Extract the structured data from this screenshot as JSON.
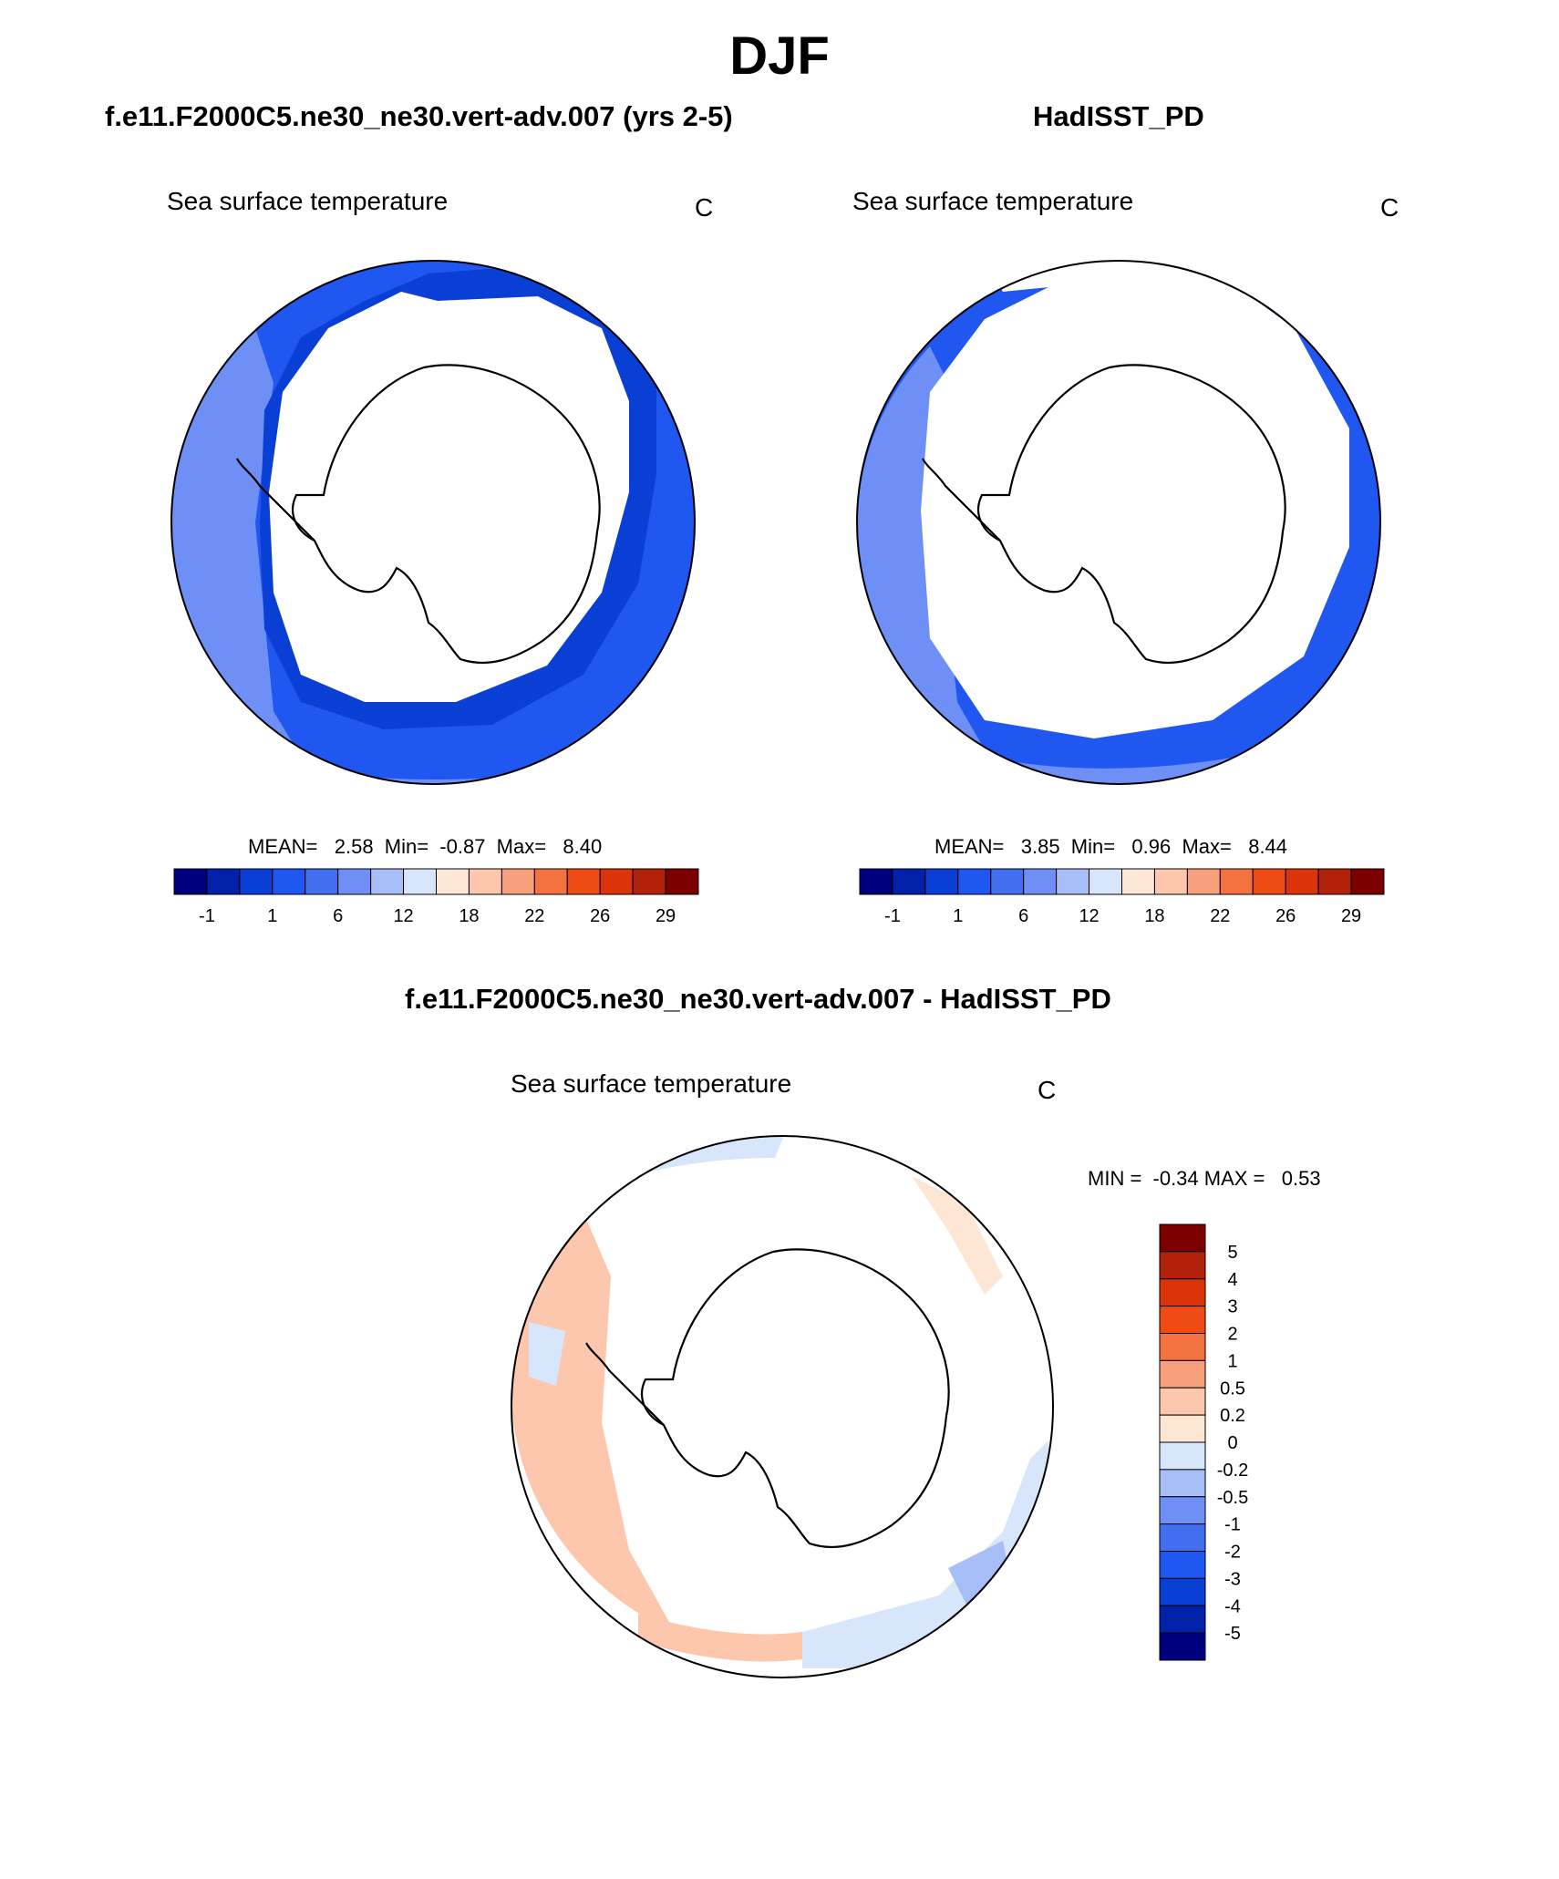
{
  "page": {
    "title": "DJF",
    "case_title": "f.e11.F2000C5.ne30_ne30.vert-adv.007 (yrs 2-5)",
    "obs_title": "HadISST_PD",
    "diff_title": "f.e11.F2000C5.ne30_ne30.vert-adv.007 - HadISST_PD"
  },
  "colors": {
    "abs_levels": [
      "#00007f",
      "#0021a8",
      "#0a3fd6",
      "#1f57f0",
      "#416ff0",
      "#6e8ff5",
      "#a6bdf6",
      "#d8e6fb",
      "#fde6d4",
      "#fcc7ad",
      "#f8a07c",
      "#f4723f",
      "#ef4b15",
      "#db330a",
      "#b2220a",
      "#7d0000"
    ],
    "diff_levels": [
      "#00007f",
      "#0021a8",
      "#0a3fd6",
      "#1f57f0",
      "#416ff0",
      "#6e8ff5",
      "#a6bdf6",
      "#d8e6fb",
      "#fde6d4",
      "#fcc7ad",
      "#f8a07c",
      "#f4723f",
      "#ef4b15",
      "#db330a",
      "#b2220a",
      "#7d0000"
    ]
  },
  "chart_data": [
    {
      "type": "heatmap",
      "title": "f.e11.F2000C5.ne30_ne30.vert-adv.007 (yrs 2-5)",
      "variable": "Sea surface temperature",
      "units": "C",
      "projection": "south polar stereographic",
      "stats": {
        "mean_label": "MEAN=",
        "mean": "2.58",
        "min_label": "Min=",
        "min": "-0.87",
        "max_label": "Max=",
        "max": "8.40"
      },
      "colorbar_ticks": [
        "-1",
        "1",
        "6",
        "12",
        "18",
        "22",
        "26",
        "29"
      ],
      "dominant_range": [
        -1,
        6
      ]
    },
    {
      "type": "heatmap",
      "title": "HadISST_PD",
      "variable": "Sea surface temperature",
      "units": "C",
      "projection": "south polar stereographic",
      "stats": {
        "mean_label": "MEAN=",
        "mean": "3.85",
        "min_label": "Min=",
        "min": "0.96",
        "max_label": "Max=",
        "max": "8.44"
      },
      "colorbar_ticks": [
        "-1",
        "1",
        "6",
        "12",
        "18",
        "22",
        "26",
        "29"
      ],
      "dominant_range": [
        1,
        6
      ]
    },
    {
      "type": "heatmap",
      "title": "f.e11.F2000C5.ne30_ne30.vert-adv.007 - HadISST_PD",
      "variable": "Sea surface temperature",
      "units": "C",
      "projection": "south polar stereographic",
      "stats": {
        "min_label": "MIN =",
        "min": "-0.34",
        "max_label": "MAX =",
        "max": "0.53"
      },
      "colorbar_ticks": [
        "5",
        "4",
        "3",
        "2",
        "1",
        "0.5",
        "0.2",
        "0",
        "-0.2",
        "-0.5",
        "-1",
        "-2",
        "-3",
        "-4",
        "-5"
      ],
      "dominant_range": [
        -0.5,
        0.5
      ]
    }
  ],
  "labels": {
    "panel1": {
      "name": "Sea surface temperature",
      "units": "C",
      "stats": "MEAN=   2.58  Min=  -0.87  Max=   8.40"
    },
    "panel2": {
      "name": "Sea surface temperature",
      "units": "C",
      "stats": "MEAN=   3.85  Min=   0.96  Max=   8.44"
    },
    "panel3": {
      "name": "Sea surface temperature",
      "units": "C",
      "stats": "MIN =  -0.34 MAX =   0.53"
    }
  }
}
